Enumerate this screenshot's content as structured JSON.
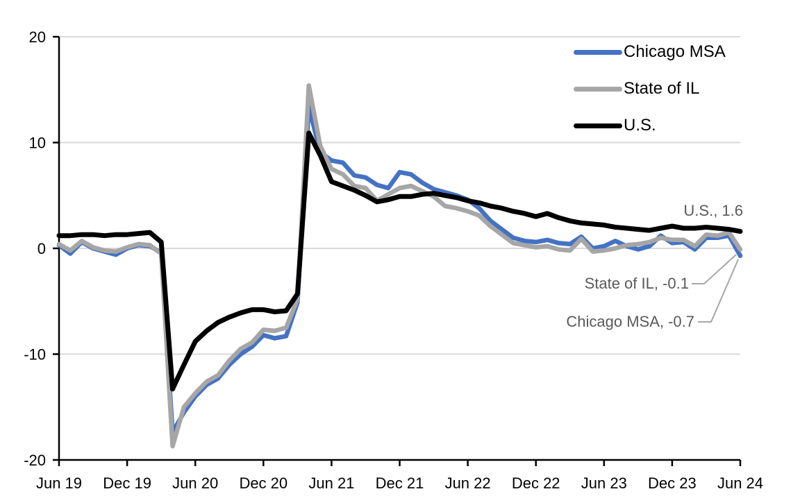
{
  "chart_data": {
    "type": "line",
    "title": "",
    "xlabel": "",
    "ylabel": "",
    "frequency": "monthly",
    "x_start": "Jun 2019",
    "x_end": "Jun 2024",
    "ylim": [
      -20,
      20
    ],
    "y_ticks": [
      20,
      10,
      0,
      -10,
      -20
    ],
    "x_tick_labels": [
      "Jun 19",
      "Dec 19",
      "Jun 20",
      "Dec 20",
      "Jun 21",
      "Dec 21",
      "Jun 22",
      "Dec 22",
      "Jun 23",
      "Dec 23",
      "Jun 24"
    ],
    "x_tick_month_indices": [
      0,
      6,
      12,
      18,
      24,
      30,
      36,
      42,
      48,
      54,
      60
    ],
    "grid": "horizontal",
    "legend_position": "top-right",
    "series": [
      {
        "name": "Chicago MSA",
        "color": "#4472C4",
        "values": [
          0.3,
          -0.5,
          0.6,
          0.0,
          -0.3,
          -0.6,
          0.0,
          0.3,
          0.2,
          -0.4,
          -17.4,
          -15.5,
          -14.0,
          -12.9,
          -12.3,
          -11.0,
          -10.0,
          -9.3,
          -8.2,
          -8.5,
          -8.3,
          -5.1,
          13.4,
          9.1,
          8.3,
          8.1,
          6.9,
          6.7,
          6.0,
          5.7,
          7.2,
          7.0,
          6.2,
          5.6,
          5.3,
          5.0,
          4.6,
          3.8,
          2.6,
          1.8,
          1.0,
          0.7,
          0.6,
          0.8,
          0.5,
          0.4,
          1.1,
          0.0,
          0.2,
          0.7,
          0.2,
          -0.1,
          0.2,
          1.2,
          0.5,
          0.6,
          -0.1,
          1.0,
          1.0,
          1.2,
          -0.7
        ]
      },
      {
        "name": "State of IL",
        "color": "#A6A6A6",
        "values": [
          0.4,
          -0.2,
          0.7,
          0.1,
          -0.2,
          -0.3,
          0.1,
          0.4,
          0.3,
          -0.5,
          -18.7,
          -15.0,
          -13.7,
          -12.6,
          -12.0,
          -10.6,
          -9.5,
          -8.9,
          -7.7,
          -7.8,
          -7.5,
          -4.8,
          15.4,
          9.7,
          7.5,
          7.0,
          5.9,
          5.7,
          4.5,
          5.1,
          5.7,
          5.9,
          5.4,
          4.9,
          4.0,
          3.8,
          3.5,
          3.1,
          2.1,
          1.3,
          0.5,
          0.3,
          0.1,
          0.2,
          -0.1,
          -0.2,
          0.9,
          -0.3,
          -0.2,
          0.0,
          0.3,
          0.4,
          0.6,
          1.0,
          0.8,
          0.8,
          0.2,
          1.3,
          1.2,
          1.5,
          -0.1
        ]
      },
      {
        "name": "U.S.",
        "color": "#000000",
        "values": [
          1.2,
          1.2,
          1.3,
          1.3,
          1.2,
          1.3,
          1.3,
          1.4,
          1.5,
          0.6,
          -13.3,
          -11.0,
          -8.8,
          -7.8,
          -7.0,
          -6.5,
          -6.1,
          -5.8,
          -5.8,
          -6.0,
          -5.9,
          -4.3,
          10.9,
          8.8,
          6.3,
          5.9,
          5.5,
          5.0,
          4.4,
          4.6,
          4.9,
          4.9,
          5.1,
          5.2,
          5.0,
          4.8,
          4.5,
          4.3,
          4.0,
          3.8,
          3.5,
          3.3,
          3.0,
          3.3,
          2.9,
          2.6,
          2.4,
          2.3,
          2.2,
          2.0,
          1.9,
          1.8,
          1.7,
          1.9,
          2.1,
          1.9,
          1.9,
          2.0,
          1.9,
          1.8,
          1.6
        ]
      }
    ],
    "annotations": [
      {
        "label": "U.S., 1.6",
        "series": "U.S.",
        "value": 1.6
      },
      {
        "label": "State of IL, -0.1",
        "series": "State of IL",
        "value": -0.1
      },
      {
        "label": "Chicago MSA, -0.7",
        "series": "Chicago MSA",
        "value": -0.7
      }
    ]
  },
  "colors": {
    "background": "#FFFFFF",
    "gridline": "#D9D9D9",
    "axis": "#000000",
    "annotation_text": "#595959",
    "leader_line": "#A6A6A6"
  }
}
